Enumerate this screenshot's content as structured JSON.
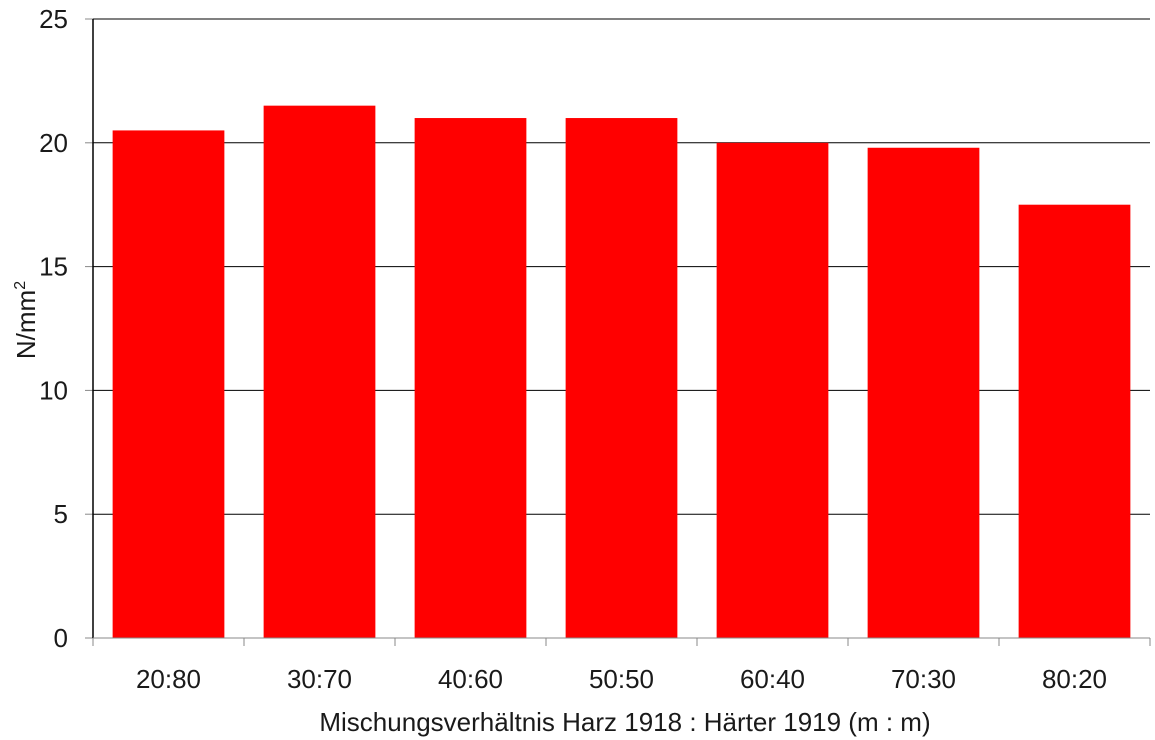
{
  "chart_data": {
    "type": "bar",
    "categories": [
      "20:80",
      "30:70",
      "40:60",
      "50:50",
      "60:40",
      "70:30",
      "80:20"
    ],
    "values": [
      20.5,
      21.5,
      21.0,
      21.0,
      20.0,
      19.8,
      17.5
    ],
    "xlabel": "Mischungsverhältnis Harz 1918 : Härter 1919 (m : m)",
    "ylabel_base": "N/mm",
    "ylabel_sup": "2",
    "ylim": [
      0,
      25
    ],
    "yticks": [
      0,
      5,
      10,
      15,
      20,
      25
    ],
    "grid": true,
    "bar_color": "#ff0000",
    "grid_color": "#000000"
  }
}
